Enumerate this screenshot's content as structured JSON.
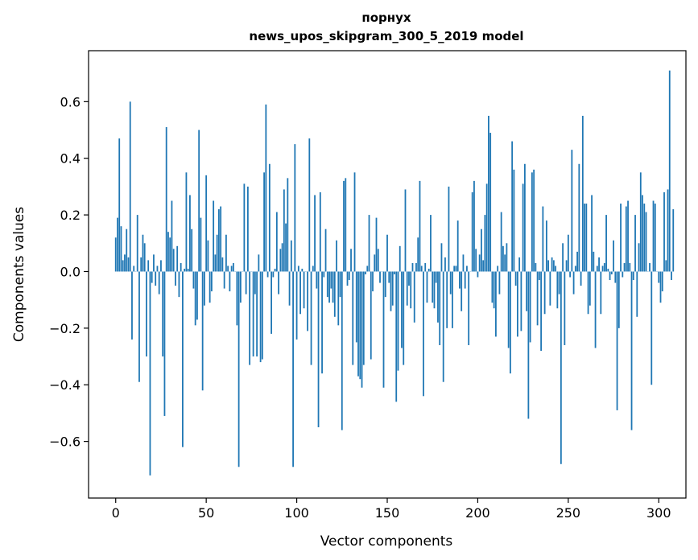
{
  "chart_data": {
    "type": "bar",
    "title": [
      "порнух",
      "news_upos_skipgram_300_5_2019 model"
    ],
    "xlabel": "Vector components",
    "ylabel": "Components values",
    "xlim": [
      -15,
      315
    ],
    "ylim": [
      -0.8,
      0.78
    ],
    "xticks": [
      0,
      50,
      100,
      150,
      200,
      250,
      300
    ],
    "yticks": [
      -0.6,
      -0.4,
      -0.2,
      0.0,
      0.2,
      0.4,
      0.6
    ],
    "ytick_labels": [
      "−0.6",
      "−0.4",
      "−0.2",
      "0.0",
      "0.2",
      "0.4",
      "0.6"
    ],
    "grid": false,
    "bar_color": "#1f77b4",
    "values": [
      0.12,
      0.19,
      0.47,
      0.16,
      0.04,
      0.06,
      0.15,
      0.05,
      0.6,
      -0.24,
      0.02,
      0.0,
      0.2,
      -0.39,
      0.05,
      0.13,
      0.1,
      -0.3,
      0.04,
      -0.72,
      -0.04,
      0.06,
      -0.05,
      0.02,
      -0.08,
      0.04,
      -0.3,
      -0.51,
      0.51,
      0.14,
      0.12,
      0.25,
      0.08,
      -0.05,
      0.09,
      -0.09,
      0.03,
      -0.62,
      0.01,
      0.35,
      0.01,
      0.27,
      0.15,
      -0.06,
      -0.19,
      -0.17,
      0.5,
      0.19,
      -0.42,
      -0.12,
      0.34,
      0.11,
      -0.11,
      -0.07,
      0.25,
      0.06,
      0.13,
      0.22,
      0.23,
      0.05,
      -0.06,
      0.13,
      0.02,
      -0.07,
      0.02,
      0.03,
      0.0,
      -0.19,
      -0.69,
      -0.11,
      0.0,
      0.31,
      -0.08,
      0.3,
      -0.33,
      0.0,
      -0.3,
      -0.08,
      -0.3,
      0.06,
      -0.32,
      -0.31,
      0.35,
      0.59,
      -0.02,
      0.38,
      -0.22,
      -0.02,
      0.01,
      0.21,
      -0.08,
      0.08,
      0.1,
      0.29,
      0.17,
      0.33,
      -0.12,
      0.11,
      -0.69,
      0.45,
      -0.24,
      0.02,
      -0.15,
      0.01,
      -0.13,
      0.0,
      -0.21,
      0.47,
      -0.33,
      0.02,
      0.27,
      -0.06,
      -0.55,
      0.28,
      -0.36,
      -0.02,
      0.15,
      -0.09,
      -0.11,
      -0.06,
      -0.11,
      -0.16,
      0.11,
      -0.19,
      -0.09,
      -0.56,
      0.32,
      0.33,
      -0.05,
      -0.03,
      0.08,
      -0.33,
      0.35,
      -0.25,
      -0.37,
      -0.38,
      -0.41,
      -0.33,
      -0.01,
      0.02,
      0.2,
      -0.31,
      -0.07,
      0.06,
      0.19,
      0.08,
      -0.04,
      0.0,
      -0.41,
      -0.09,
      0.13,
      -0.04,
      -0.14,
      -0.12,
      -0.01,
      -0.46,
      -0.35,
      0.09,
      -0.27,
      -0.33,
      0.29,
      -0.12,
      -0.05,
      -0.13,
      0.03,
      -0.18,
      0.03,
      0.12,
      0.32,
      0.02,
      -0.44,
      0.03,
      -0.11,
      0.01,
      0.2,
      -0.11,
      -0.13,
      -0.04,
      -0.18,
      -0.26,
      0.1,
      -0.39,
      0.05,
      -0.2,
      0.3,
      -0.08,
      -0.2,
      0.02,
      0.02,
      0.18,
      -0.06,
      -0.14,
      0.06,
      -0.06,
      0.02,
      -0.26,
      0.0,
      0.28,
      0.32,
      0.08,
      -0.02,
      0.06,
      0.15,
      0.04,
      0.2,
      0.31,
      0.55,
      0.49,
      -0.11,
      -0.13,
      -0.23,
      0.02,
      -0.08,
      0.21,
      0.09,
      0.06,
      0.1,
      -0.27,
      -0.36,
      0.46,
      0.36,
      -0.05,
      -0.23,
      0.05,
      -0.21,
      0.31,
      0.38,
      -0.14,
      -0.52,
      -0.25,
      0.35,
      0.36,
      0.03,
      -0.19,
      -0.03,
      -0.28,
      0.23,
      -0.15,
      0.18,
      0.04,
      -0.12,
      0.05,
      0.04,
      0.02,
      -0.13,
      -0.08,
      -0.68,
      0.1,
      -0.26,
      0.04,
      0.13,
      -0.02,
      0.43,
      -0.08,
      0.02,
      0.07,
      0.38,
      -0.05,
      0.55,
      0.24,
      0.24,
      -0.15,
      -0.12,
      0.27,
      0.07,
      -0.27,
      0.02,
      0.05,
      -0.15,
      0.02,
      0.03,
      0.2,
      0.01,
      -0.03,
      -0.01,
      0.11,
      -0.04,
      -0.49,
      -0.2,
      0.24,
      -0.02,
      0.03,
      0.23,
      0.25,
      0.03,
      -0.56,
      -0.03,
      0.2,
      -0.16,
      0.1,
      0.35,
      0.27,
      0.24,
      0.21,
      0.0,
      0.03,
      -0.4,
      0.25,
      0.24,
      0.0,
      -0.04,
      -0.11,
      -0.07,
      0.28,
      0.04,
      0.29,
      0.71,
      -0.03,
      0.22
    ]
  }
}
